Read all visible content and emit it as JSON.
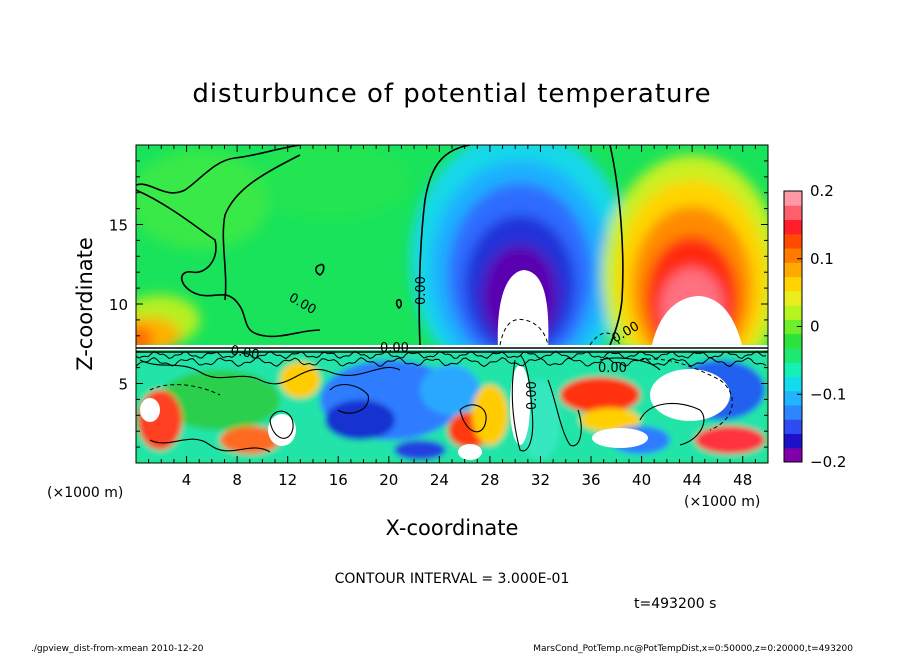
{
  "chart_data": {
    "type": "heatmap",
    "title": "disturbunce of potential temperature",
    "xlabel": "X-coordinate",
    "ylabel": "Z-coordinate",
    "x_unit_left": "(×1000 m)",
    "x_unit_right": "(×1000 m)",
    "xlim": [
      0,
      50
    ],
    "ylim": [
      0,
      20
    ],
    "xticks": [
      4,
      8,
      12,
      16,
      20,
      24,
      28,
      32,
      36,
      40,
      44,
      48
    ],
    "yticks": [
      5,
      10,
      15
    ],
    "colorbar": {
      "range": [
        -0.2,
        0.2
      ],
      "ticks": [
        0.2,
        0.1,
        0,
        -0.1,
        -0.2
      ],
      "tick_labels": [
        "0.2",
        "0.1",
        "0",
        "−0.1",
        "−0.2"
      ],
      "colors": [
        "#7f00a8",
        "#1e0fc8",
        "#2f4bf2",
        "#2e86ff",
        "#21b5ff",
        "#14dcf0",
        "#16f0b5",
        "#1ee86e",
        "#2be33c",
        "#6df02a",
        "#b7f321",
        "#e9ee1c",
        "#ffd400",
        "#ffaa00",
        "#ff7b00",
        "#ff4a00",
        "#ff1e2a",
        "#ff5f6d",
        "#ff9aa5"
      ]
    },
    "contour_labels": [
      "0.00",
      "0.00",
      "0.00",
      "0.00",
      "0.00",
      "0.00",
      "0.00"
    ],
    "contour_interval": "CONTOUR INTERVAL = 3.000E-01",
    "time_label": "t=493200 s"
  },
  "footer": {
    "left": "./gpview_dist-from-xmean   2010-12-20",
    "right": "MarsCond_PotTemp.nc@PotTempDist,x=0:50000,z=0:20000,t=493200"
  },
  "colors": {
    "background": "#ffffff",
    "field_base": "#19e35a"
  }
}
